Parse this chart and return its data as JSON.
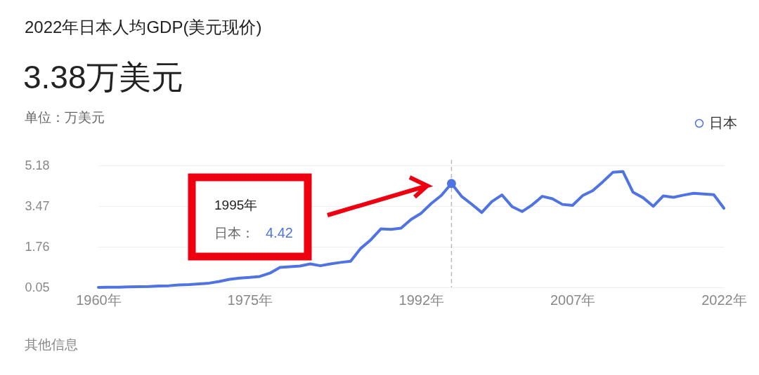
{
  "chart_data": {
    "type": "line",
    "title": "2022年日本人均GDP(美元现价)",
    "subtitle": "3.38万美元",
    "ylabel": "单位：万美元",
    "x": [
      1960,
      1961,
      1962,
      1963,
      1964,
      1965,
      1966,
      1967,
      1968,
      1969,
      1970,
      1971,
      1972,
      1973,
      1974,
      1975,
      1976,
      1977,
      1978,
      1979,
      1980,
      1981,
      1982,
      1983,
      1984,
      1985,
      1986,
      1987,
      1988,
      1989,
      1990,
      1991,
      1992,
      1993,
      1994,
      1995,
      1996,
      1997,
      1998,
      1999,
      2000,
      2001,
      2002,
      2003,
      2004,
      2005,
      2006,
      2007,
      2008,
      2009,
      2010,
      2011,
      2012,
      2013,
      2014,
      2015,
      2016,
      2017,
      2018,
      2019,
      2020,
      2021,
      2022
    ],
    "series": [
      {
        "name": "日本",
        "color": "#4f73e3",
        "values": [
          0.05,
          0.06,
          0.06,
          0.07,
          0.08,
          0.09,
          0.11,
          0.12,
          0.15,
          0.17,
          0.2,
          0.23,
          0.3,
          0.39,
          0.44,
          0.47,
          0.51,
          0.65,
          0.89,
          0.92,
          0.95,
          1.04,
          0.96,
          1.04,
          1.1,
          1.15,
          1.69,
          2.05,
          2.51,
          2.49,
          2.54,
          2.91,
          3.17,
          3.58,
          3.92,
          4.42,
          3.88,
          3.55,
          3.2,
          3.66,
          3.94,
          3.45,
          3.24,
          3.52,
          3.88,
          3.78,
          3.54,
          3.5,
          3.91,
          4.12,
          4.49,
          4.89,
          4.92,
          4.05,
          3.82,
          3.46,
          3.9,
          3.84,
          3.93,
          4.01,
          3.98,
          3.95,
          3.38
        ]
      }
    ],
    "xlim": [
      1960,
      2022
    ],
    "xticks": [
      {
        "value": 1960,
        "label": "1960年"
      },
      {
        "value": 1975,
        "label": "1975年"
      },
      {
        "value": 1992,
        "label": "1992年"
      },
      {
        "value": 2007,
        "label": "2007年"
      },
      {
        "value": 2022,
        "label": "2022年"
      }
    ],
    "ylim": [
      0.05,
      5.18
    ],
    "yticks": [
      0.05,
      1.76,
      3.47,
      5.18
    ],
    "grid": "y",
    "legend": "top right",
    "marker": "none",
    "line_style": "solid",
    "ref_lines": [
      {
        "axis": "x",
        "value": 1995,
        "label": null,
        "color": "#bbbbbb",
        "line_style": "dashed"
      }
    ],
    "annotations": [
      "1995年",
      "日本： 4.42",
      "其他信息"
    ]
  }
}
